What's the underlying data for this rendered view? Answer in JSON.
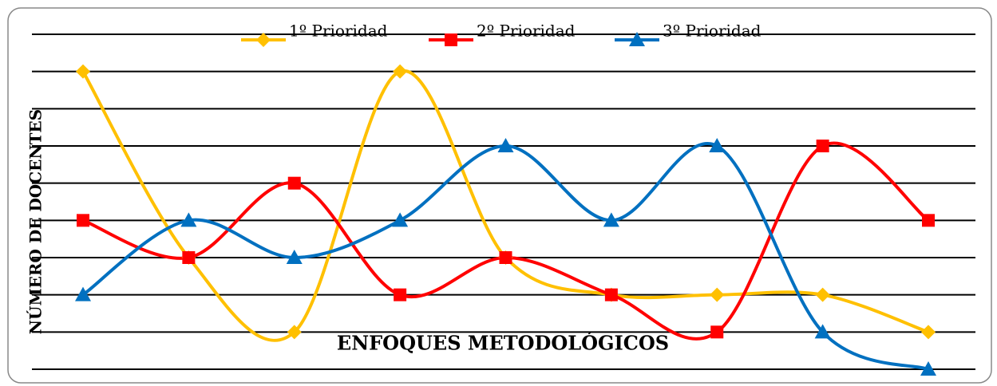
{
  "chart_data": {
    "type": "line",
    "x_label": "ENFOQUES METODOLÓGICOS",
    "y_label": "NÚMERO  DE  DOCENTES",
    "categories": [
      null,
      null,
      null,
      null,
      null,
      null,
      null,
      null,
      null
    ],
    "series": [
      {
        "name": "1º Prioridad",
        "color": "#FFC000",
        "marker": "diamond",
        "values": [
          8,
          3,
          1,
          8,
          3,
          2,
          2,
          2,
          1
        ]
      },
      {
        "name": "2º Prioridad",
        "color": "#FF0000",
        "marker": "square",
        "values": [
          4,
          3,
          5,
          2,
          3,
          2,
          1,
          6,
          4
        ]
      },
      {
        "name": "3º Prioridad",
        "color": "#0070C0",
        "marker": "triangle",
        "values": [
          2,
          4,
          3,
          4,
          6,
          4,
          6,
          1,
          0
        ]
      }
    ],
    "ylim": [
      0,
      9
    ],
    "yticks": [
      0,
      1,
      2,
      3,
      4,
      5,
      6,
      7,
      8,
      9
    ],
    "grid": true,
    "smooth": true,
    "legend": "top"
  }
}
